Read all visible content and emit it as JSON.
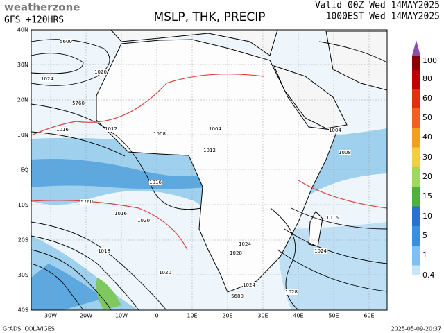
{
  "header": {
    "logo": "weatherzone",
    "model": "GFS +120HRS",
    "title": "MSLP, THK, PRECIP",
    "valid": "Valid 00Z Wed 14MAY2025",
    "local": "1000EST Wed 14MAY2025"
  },
  "map": {
    "lat_labels": [
      "40N",
      "30N",
      "20N",
      "10N",
      "EQ",
      "10S",
      "20S",
      "30S",
      "40S"
    ],
    "lon_labels": [
      "30W",
      "20W",
      "10W",
      "0",
      "10E",
      "20E",
      "30E",
      "40E",
      "50E",
      "60E"
    ],
    "contour_labels": [
      "5600",
      "1020",
      "1024",
      "5760",
      "1016",
      "1012",
      "1008",
      "1004",
      "1012",
      "1016",
      "5760",
      "1016",
      "1020",
      "5680",
      "1018",
      "1020",
      "1024",
      "1024",
      "1028",
      "1024",
      "1016",
      "1008",
      "1004",
      "5680",
      "1028"
    ]
  },
  "colorbar": {
    "labels": [
      "100",
      "80",
      "60",
      "50",
      "40",
      "30",
      "20",
      "15",
      "10",
      "5",
      "1",
      "0.4"
    ]
  },
  "footer": {
    "credit": "GrADS: COLA/IGES",
    "timestamp": "2025-05-09-20:37"
  }
}
